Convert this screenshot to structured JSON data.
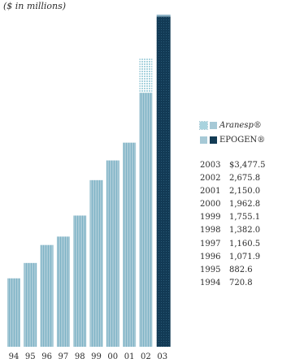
{
  "subtitle": "($ in millions)",
  "legend": [
    {
      "name": "Aranesp®",
      "marker": "stipple-light-blue"
    },
    {
      "name": "EPOGEN®",
      "marker": "dark-navy"
    }
  ],
  "colors": {
    "bar_light": "#a6c9d6",
    "bar_dark": "#123a55",
    "aranesp": "#a9d3de",
    "epogen": "#133b55"
  },
  "chart_data": {
    "type": "bar",
    "title": "",
    "subtitle": "($ in millions)",
    "xlabel": "",
    "ylabel": "",
    "categories": [
      "94",
      "95",
      "96",
      "97",
      "98",
      "99",
      "00",
      "01",
      "02",
      "03"
    ],
    "ylim": [
      0,
      3600
    ],
    "series": [
      {
        "name": "EPOGEN®",
        "values": [
          720.8,
          882.6,
          1071.9,
          1160.5,
          1382.0,
          1755.1,
          1962.8,
          2150.0,
          2675.8,
          3477.5
        ]
      }
    ],
    "table": [
      {
        "year": "2003",
        "value": "$3,477.5"
      },
      {
        "year": "2002",
        "value": "2,675.8"
      },
      {
        "year": "2001",
        "value": "2,150.0"
      },
      {
        "year": "2000",
        "value": "1,962.8"
      },
      {
        "year": "1999",
        "value": "1,755.1"
      },
      {
        "year": "1998",
        "value": "1,382.0"
      },
      {
        "year": "1997",
        "value": "1,160.5"
      },
      {
        "year": "1996",
        "value": "1,071.9"
      },
      {
        "year": "1995",
        "value": "882.6"
      },
      {
        "year": "1994",
        "value": "720.8"
      }
    ]
  }
}
